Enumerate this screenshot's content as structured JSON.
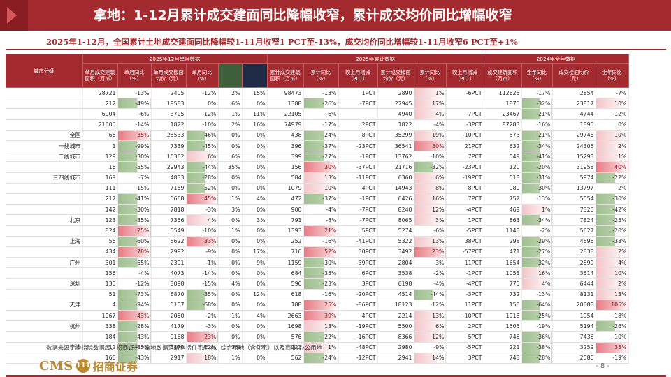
{
  "title": "拿地：1-12月累计成交建面同比降幅收窄，累计成交均价同比增幅收窄",
  "subtitle": "2025年1-12月，全国累计土地成交建面同比降幅较1-11月收窄1 PCT至-13%，成交均价同比增幅较1-11月收窄6 PCT至+1%",
  "table": {
    "group_headers": [
      "城市分级",
      "2025年12月单月数据",
      "2025年累计数据",
      "2024年全年数据"
    ],
    "col_headers": [
      "单月成交建筑面积（万㎡）",
      "单月同比（%）",
      "单月成交楼面均价（元）",
      "单月同比（%）",
      "",
      "",
      "累计成交建筑面积（万㎡）",
      "累计同比（%）",
      "较上月增减（PCT）",
      "累计成交楼面均价（元）",
      "累计同比（%）",
      "较上月增减（PCT）",
      "成交建筑面积（万㎡）",
      "全年同比（%）",
      "成交楼面均价（元）",
      "全年同比（%）"
    ],
    "rows": [
      {
        "city": "",
        "v": [
          "28721",
          "-13%",
          "2405",
          "-12%",
          "2%",
          "15%",
          "98473",
          "-13%",
          "1PCT",
          "2890",
          "1%",
          "-6PCT",
          "112625",
          "-17%",
          "2854",
          "-7%"
        ]
      },
      {
        "city": "",
        "v": [
          "212",
          "-49%",
          "19583",
          "0%",
          "6%",
          "0%",
          "1388",
          "-26%",
          "-7PCT",
          "27945",
          "17%",
          "",
          "1875",
          "-32%",
          "23817",
          "10%"
        ]
      },
      {
        "city": "",
        "v": [
          "6904",
          "-6%",
          "3705",
          "-12%",
          "1%",
          "11%",
          "22105",
          "-6%",
          "",
          "4940",
          "4%",
          "-7PCT",
          "23467",
          "-21%",
          "4744",
          "-12%"
        ]
      },
      {
        "city": "",
        "v": [
          "21606",
          "-14%",
          "1822",
          "-10%",
          "2%",
          "16%",
          "74979",
          "-17%",
          "2PCT",
          "1822",
          "-4%",
          "-3PCT",
          "87283",
          "-16%",
          "1895",
          "0%"
        ]
      },
      {
        "city": "全国",
        "v": [
          "66",
          "35%",
          "25533",
          "-46%",
          "0%",
          "0%",
          "438",
          "-24%",
          "8PCT",
          "35299",
          "19%",
          "-10PCT",
          "573",
          "-21%",
          "29746",
          "10%"
        ]
      },
      {
        "city": "一线城市",
        "v": [
          "1",
          "-99%",
          "7339",
          "-45%",
          "0%",
          "0%",
          "396",
          "-37%",
          "-23PCT",
          "36541",
          "50%",
          "21PCT",
          "632",
          "-34%",
          "24305",
          "2%"
        ]
      },
      {
        "city": "二线城市",
        "v": [
          "129",
          "-30%",
          "15362",
          "6%",
          "6%",
          "0%",
          "399",
          "-27%",
          "-1PCT",
          "13762",
          "-10%",
          "7PCT",
          "549",
          "-41%",
          "15293",
          "1%"
        ]
      },
      {
        "city": "",
        "v": [
          "16",
          "-55%",
          "29943",
          "-44%",
          "35%",
          "0%",
          "156",
          "30%",
          "-37PCT",
          "21716",
          "-32%",
          "-23PCT",
          "120",
          "-20%",
          "31958",
          "40%"
        ]
      },
      {
        "city": "三四线城市",
        "v": [
          "169",
          "-7%",
          "4833",
          "-28%",
          "0%",
          "0%",
          "584",
          "13%",
          "-11PCT",
          "6360",
          "6%",
          "-19PCT",
          "518",
          "-31%",
          "5974",
          "-22%"
        ]
      },
      {
        "city": "",
        "v": [
          "111",
          "-15%",
          "7159",
          "-52%",
          "0%",
          "0%",
          "1079",
          "10%",
          "-4PCT",
          "14943",
          "8%",
          "-8PCT",
          "980",
          "-30%",
          "13797",
          "-2%"
        ]
      },
      {
        "city": "",
        "v": [
          "217",
          "-41%",
          "5668",
          "45%",
          "1%",
          "4%",
          "472",
          "-37%",
          "-1PCT",
          "6426",
          "16%",
          "7PCT",
          "752",
          "-13%",
          "5554",
          "-30%"
        ]
      },
      {
        "city": "",
        "v": [
          "142",
          "-30%",
          "7818",
          "-3%",
          "3%",
          "0%",
          "900",
          "-4%",
          "-7PCT",
          "8240",
          "12%",
          "-4PCT",
          "469",
          "1%",
          "7326",
          "-42%"
        ]
      },
      {
        "city": "北京",
        "v": [
          "123",
          "-35%",
          "7356",
          "4%",
          "0%",
          "3%",
          "791",
          "-8%",
          "-7PCT",
          "8065",
          "3%",
          "1PCT",
          "863",
          "-34%",
          "7824",
          "-25%"
        ]
      },
      {
        "city": "",
        "v": [
          "824",
          "25%",
          "5549",
          "-10%",
          "1%",
          "0%",
          "1393",
          "21%",
          "5PCT",
          "5274",
          "-6%",
          "-5PCT",
          "1148",
          "-2%",
          "5627",
          "-20%"
        ]
      },
      {
        "city": "上海",
        "v": [
          "56",
          "-60%",
          "5622",
          "33%",
          "0%",
          "0%",
          "252",
          "-16%",
          "-41PCT",
          "5322",
          "13%",
          "38PCT",
          "298",
          "-29%",
          "4696",
          "-33%"
        ]
      },
      {
        "city": "",
        "v": [
          "434",
          "78%",
          "2992",
          "-9%",
          "0%",
          "17%",
          "716",
          "52%",
          "30PCT",
          "3492",
          "23%",
          "-57PCT",
          "471",
          "-27%",
          "2838",
          "2%"
        ]
      },
      {
        "city": "广州",
        "v": [
          "301",
          "-65%",
          "2391",
          "-1%",
          "0%",
          "9%",
          "1159",
          "-30%",
          "-39PCT",
          "2804",
          "-3%",
          "11PCT",
          "1654",
          "-32%",
          "2899",
          "4%"
        ]
      },
      {
        "city": "",
        "v": [
          "156",
          "-4%",
          "4073",
          "-14%",
          "0%",
          "0%",
          "684",
          "-35%",
          "6PCT",
          "3538",
          "-2%",
          "-1PCT",
          "1053",
          "16%",
          "3614",
          "10%"
        ]
      },
      {
        "city": "深圳",
        "v": [
          "130",
          "-12%",
          "3098",
          "-15%",
          "4%",
          "0%",
          "596",
          "-23%",
          "3PCT",
          "6198",
          "-4%",
          "-4PCT",
          "775",
          "4%",
          "6444",
          "2%"
        ]
      },
      {
        "city": "",
        "v": [
          "51",
          "-73%",
          "6870",
          "-35%",
          "0%",
          "12%",
          "618",
          "-16%",
          "-20PCT",
          "4514",
          "-44%",
          "-3PCT",
          "732",
          "-13%",
          "8131",
          "13%"
        ]
      },
      {
        "city": "天津",
        "v": [
          "4",
          "-94%",
          "5107",
          "-68%",
          "0%",
          "0%",
          "188",
          "25%",
          "-86PCT",
          "18123",
          "-12%",
          "11PCT",
          "150",
          "-64%",
          "20688",
          "105%"
        ]
      },
      {
        "city": "",
        "v": [
          "1067",
          "43%",
          "2050",
          "-2%",
          "1%",
          "4%",
          "2663",
          "39%",
          "4PCT",
          "2214",
          "13%",
          "-10PCT",
          "1918",
          "-25%",
          "1954",
          "-18%"
        ]
      },
      {
        "city": "杭州",
        "v": [
          "338",
          "-28%",
          "4179",
          "-3%",
          "0%",
          "0%",
          "1698",
          "13%",
          "-19PCT",
          "5500",
          "6%",
          "2PCT",
          "1505",
          "-19%",
          "5194",
          "-26%"
        ]
      },
      {
        "city": "",
        "v": [
          "184",
          "-43%",
          "9168",
          "23%",
          "0%",
          "0%",
          "576",
          "-22%",
          "-16PCT",
          "8366",
          "12%",
          "5PCT",
          "746",
          "-36%",
          "7436",
          "-10%"
        ]
      },
      {
        "city": "宁波",
        "v": [
          "12",
          "-85%",
          "3170",
          "-12%",
          "3%",
          "0%",
          "223",
          "1%",
          "-48PCT",
          "2980",
          "-9%",
          "-5PCT",
          "221",
          "-38%",
          "3259",
          "35%"
        ]
      },
      {
        "city": "",
        "v": [
          "166",
          "-43%",
          "2917",
          "18%",
          "1%",
          "0%",
          "562",
          "-24%",
          "-12PCT",
          "2941",
          "14%",
          "3PCT",
          "743",
          "-28%",
          "2586",
          "-19%"
        ]
      }
    ]
  },
  "source": "数据来源：中指院数据库、招商证券    *拿地数据范畴包括住宅用地、综合用地（含住宅）以及商业/办公用地",
  "logo": {
    "cms": "CMS",
    "emblem": "111",
    "brand": "招商证券"
  },
  "page": "- 8 -"
}
